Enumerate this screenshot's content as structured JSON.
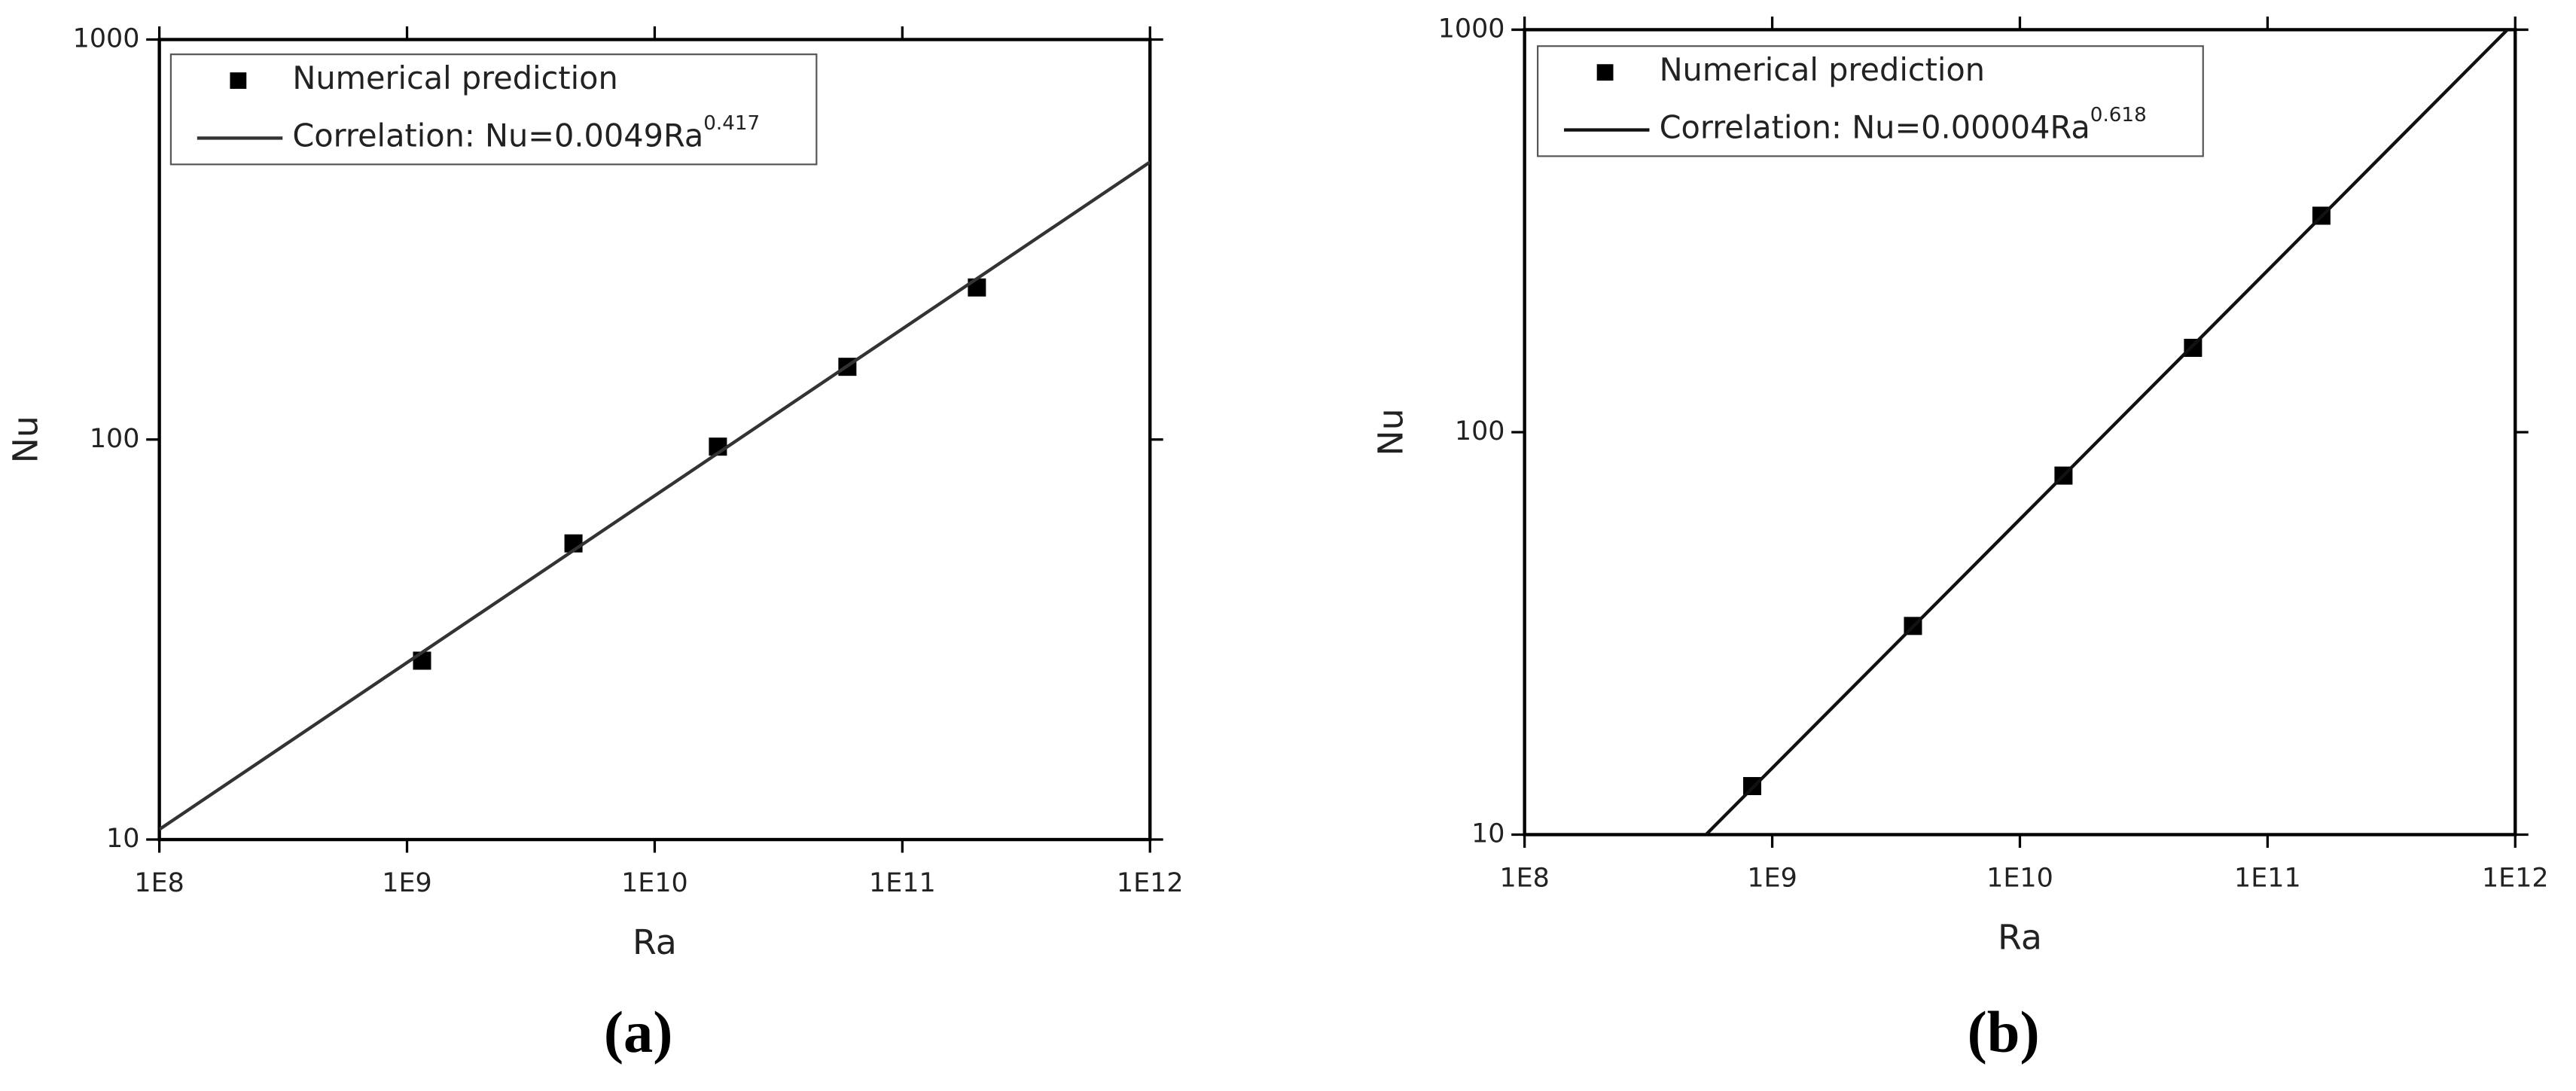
{
  "chart_data": [
    {
      "type": "scatter",
      "caption": "(a)",
      "x_label": "Ra",
      "y_label": "Nu",
      "log_x": true,
      "log_y": true,
      "xlim": [
        100000000,
        1000000000000
      ],
      "ylim": [
        10,
        1000
      ],
      "xticks": [
        {
          "value": 100000000,
          "label": "1E8"
        },
        {
          "value": 1000000000,
          "label": "1E9"
        },
        {
          "value": 10000000000,
          "label": "1E10"
        },
        {
          "value": 100000000000,
          "label": "1E11"
        },
        {
          "value": 1000000000000,
          "label": "1E12"
        }
      ],
      "yticks": [
        10,
        100,
        1000
      ],
      "series": [
        {
          "name": "Numerical prediction",
          "type": "scatter",
          "color": "#000000",
          "x": [
            1150000000,
            4700000000,
            18000000000,
            60000000000,
            200000000000
          ],
          "values": [
            28,
            55,
            96,
            152,
            240
          ]
        },
        {
          "name": "Correlation: Nu=0.0049Ra",
          "name_superscript": "0.417",
          "type": "line",
          "color": "#333333",
          "x": [
            100000000,
            1000000000000
          ],
          "values": [
            10.6,
            494
          ]
        }
      ]
    },
    {
      "type": "scatter",
      "caption": "(b)",
      "x_label": "Ra",
      "y_label": "Nu",
      "log_x": true,
      "log_y": true,
      "xlim": [
        100000000,
        1000000000000
      ],
      "ylim": [
        10,
        1000
      ],
      "xticks": [
        {
          "value": 100000000,
          "label": "1E8"
        },
        {
          "value": 1000000000,
          "label": "1E9"
        },
        {
          "value": 10000000000,
          "label": "1E10"
        },
        {
          "value": 100000000000,
          "label": "1E11"
        },
        {
          "value": 1000000000000,
          "label": "1E12"
        }
      ],
      "yticks": [
        10,
        100,
        1000
      ],
      "series": [
        {
          "name": "Numerical prediction",
          "type": "scatter",
          "color": "#000000",
          "x": [
            830000000,
            3700000000,
            15000000000,
            50000000000,
            165000000000
          ],
          "values": [
            13.2,
            33,
            78,
            162,
            345
          ]
        },
        {
          "name": "Correlation: Nu=0.00004Ra",
          "name_superscript": "0.618",
          "type": "line",
          "color": "#111111",
          "x": [
            540000000,
            930000000000
          ],
          "values": [
            10,
            1000
          ]
        }
      ]
    }
  ]
}
